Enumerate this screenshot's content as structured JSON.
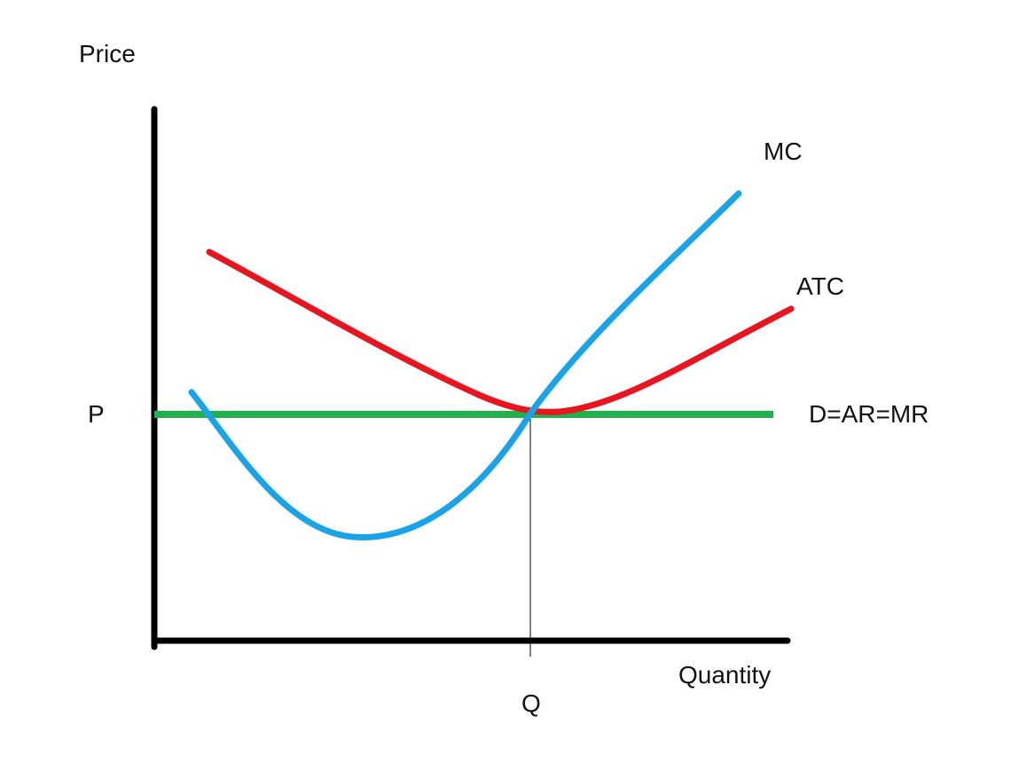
{
  "labels": {
    "y_axis": "Price",
    "x_axis": "Quantity",
    "price_level": "P",
    "quantity_level": "Q",
    "mc": "MC",
    "atc": "ATC",
    "demand": "D=AR=MR"
  },
  "colors": {
    "axis": "#000000",
    "mc": "#1aa3e8",
    "atc": "#e8141e",
    "demand": "#1fb24a",
    "guide": "#000000"
  }
}
